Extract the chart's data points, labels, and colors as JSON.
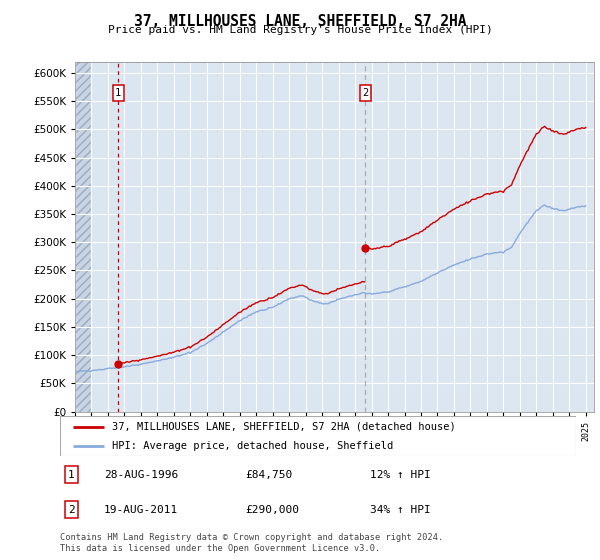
{
  "title": "37, MILLHOUSES LANE, SHEFFIELD, S7 2HA",
  "subtitle": "Price paid vs. HM Land Registry's House Price Index (HPI)",
  "ylim": [
    0,
    620000
  ],
  "yticks": [
    0,
    50000,
    100000,
    150000,
    200000,
    250000,
    300000,
    350000,
    400000,
    450000,
    500000,
    550000,
    600000
  ],
  "price_paid_color": "#cc0000",
  "hpi_color": "#88aadd",
  "background_color": "#dce6f1",
  "grid_color": "#ffffff",
  "purchase1_year": 1996.63,
  "purchase1_price": 84750,
  "purchase2_year": 2011.63,
  "purchase2_price": 290000,
  "legend_line1": "37, MILLHOUSES LANE, SHEFFIELD, S7 2HA (detached house)",
  "legend_line2": "HPI: Average price, detached house, Sheffield",
  "footnote": "Contains HM Land Registry data © Crown copyright and database right 2024.\nThis data is licensed under the Open Government Licence v3.0.",
  "table_rows": [
    {
      "label": "1",
      "date": "28-AUG-1996",
      "price": "£84,750",
      "hpi": "12% ↑ HPI"
    },
    {
      "label": "2",
      "date": "19-AUG-2011",
      "price": "£290,000",
      "hpi": "34% ↑ HPI"
    }
  ],
  "hpi_anchors_year": [
    1994.0,
    1995.0,
    1996.0,
    1997.0,
    1998.0,
    1999.0,
    2000.0,
    2001.0,
    2002.0,
    2003.0,
    2004.0,
    2005.0,
    2006.0,
    2007.0,
    2007.8,
    2008.5,
    2009.2,
    2010.0,
    2010.8,
    2011.5,
    2012.0,
    2013.0,
    2014.0,
    2015.0,
    2016.0,
    2017.0,
    2018.0,
    2019.0,
    2020.0,
    2020.5,
    2021.0,
    2021.5,
    2022.0,
    2022.5,
    2023.0,
    2023.5,
    2024.0,
    2024.5,
    2025.0
  ],
  "hpi_anchors_val": [
    71000,
    73000,
    76000,
    80000,
    85000,
    90000,
    97000,
    105000,
    120000,
    140000,
    160000,
    175000,
    185000,
    200000,
    205000,
    195000,
    190000,
    198000,
    205000,
    210000,
    208000,
    212000,
    220000,
    230000,
    245000,
    258000,
    270000,
    278000,
    282000,
    290000,
    315000,
    335000,
    355000,
    365000,
    360000,
    355000,
    358000,
    362000,
    365000
  ]
}
